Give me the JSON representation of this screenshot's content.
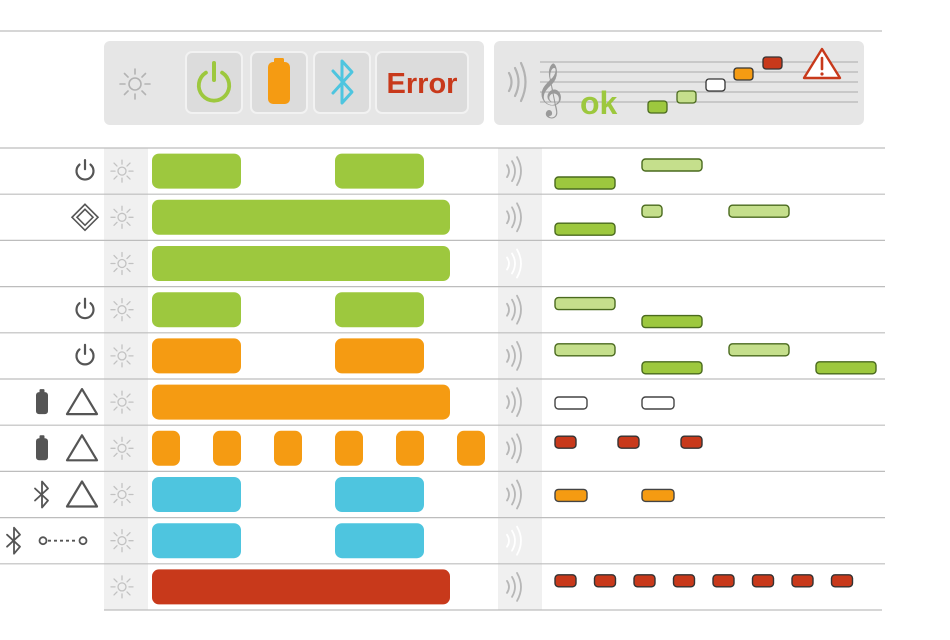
{
  "colors": {
    "green": "#9dc83e",
    "light_green": "#c5df8c",
    "dark_green_border": "#4a6a1e",
    "orange": "#f59b12",
    "blue": "#4ec5df",
    "red": "#c8391b",
    "panel": "#e6e6e6",
    "icon_gray": "#b3b3b3",
    "line_gray": "#bdbdbd",
    "text_dark": "#555555"
  },
  "legend": {
    "light_icon": "sun-icon",
    "power_icon": "power-icon",
    "battery_icon": "battery-icon",
    "bluetooth_icon": "bluetooth-icon",
    "error_label": "Error",
    "sound_icon": "speaker-waves-icon",
    "clef_icon": "treble-clef-icon",
    "ok_label": "ok",
    "warning_icon": "warning-triangle-icon"
  },
  "rows": [
    {
      "status_icons": [
        "power-icon"
      ],
      "light": {
        "color": "green",
        "pattern": "blink-slow"
      },
      "sound_active": true,
      "melody": {
        "style": "green",
        "notes": [
          {
            "beat": 0,
            "pitch": 0
          },
          {
            "beat": 1,
            "pitch": 1
          }
        ]
      }
    },
    {
      "status_icons": [
        "diamond-icon"
      ],
      "light": {
        "color": "green",
        "pattern": "on"
      },
      "sound_active": true,
      "melody": {
        "style": "green",
        "notes": [
          {
            "beat": 0,
            "pitch": 0
          },
          {
            "beat": 1,
            "pitch": 1,
            "short": true
          },
          {
            "beat": 2,
            "pitch": 1
          }
        ]
      }
    },
    {
      "status_icons": [],
      "light": {
        "color": "green",
        "pattern": "on"
      },
      "sound_active": false,
      "melody": {
        "style": "none",
        "notes": []
      }
    },
    {
      "status_icons": [
        "power-icon"
      ],
      "light": {
        "color": "green",
        "pattern": "blink-slow"
      },
      "sound_active": true,
      "melody": {
        "style": "green",
        "notes": [
          {
            "beat": 0,
            "pitch": 1
          },
          {
            "beat": 1,
            "pitch": 0
          }
        ]
      }
    },
    {
      "status_icons": [
        "power-icon"
      ],
      "light": {
        "color": "orange",
        "pattern": "blink-slow"
      },
      "sound_active": true,
      "melody": {
        "style": "green",
        "notes": [
          {
            "beat": 0,
            "pitch": 1
          },
          {
            "beat": 1,
            "pitch": 0
          },
          {
            "beat": 2,
            "pitch": 1
          },
          {
            "beat": 3,
            "pitch": 0
          }
        ]
      }
    },
    {
      "status_icons": [
        "battery-icon",
        "warning-outline-icon"
      ],
      "light": {
        "color": "orange",
        "pattern": "on"
      },
      "sound_active": true,
      "melody": {
        "style": "white",
        "notes": [
          {
            "beat": 0,
            "pitch": 0
          },
          {
            "beat": 1,
            "pitch": 0
          }
        ]
      }
    },
    {
      "status_icons": [
        "battery-icon",
        "warning-outline-icon"
      ],
      "light": {
        "color": "orange",
        "pattern": "blink-fast"
      },
      "sound_active": true,
      "melody": {
        "style": "red",
        "notes": [
          {
            "beat": 0,
            "pitch": 0
          },
          {
            "beat": 1,
            "pitch": 0
          },
          {
            "beat": 2,
            "pitch": 0
          }
        ]
      }
    },
    {
      "status_icons": [
        "bluetooth-icon",
        "warning-outline-icon"
      ],
      "light": {
        "color": "blue",
        "pattern": "blink-slow"
      },
      "sound_active": true,
      "melody": {
        "style": "orange",
        "notes": [
          {
            "beat": 0,
            "pitch": 0
          },
          {
            "beat": 1,
            "pitch": 0
          }
        ]
      }
    },
    {
      "status_icons": [
        "bluetooth-icon",
        "pairing-dots-icon"
      ],
      "light": {
        "color": "blue",
        "pattern": "blink-slow"
      },
      "sound_active": false,
      "melody": {
        "style": "none",
        "notes": []
      }
    },
    {
      "status_icons": [],
      "light": {
        "color": "red",
        "pattern": "on"
      },
      "sound_active": true,
      "melody": {
        "style": "red",
        "notes": [
          {
            "beat": 0,
            "pitch": 0
          },
          {
            "beat": 1,
            "pitch": 0
          },
          {
            "beat": 2,
            "pitch": 0
          },
          {
            "beat": 3,
            "pitch": 0
          },
          {
            "beat": 4,
            "pitch": 0
          },
          {
            "beat": 5,
            "pitch": 0
          },
          {
            "beat": 6,
            "pitch": 0
          },
          {
            "beat": 7,
            "pitch": 0
          }
        ]
      }
    }
  ]
}
